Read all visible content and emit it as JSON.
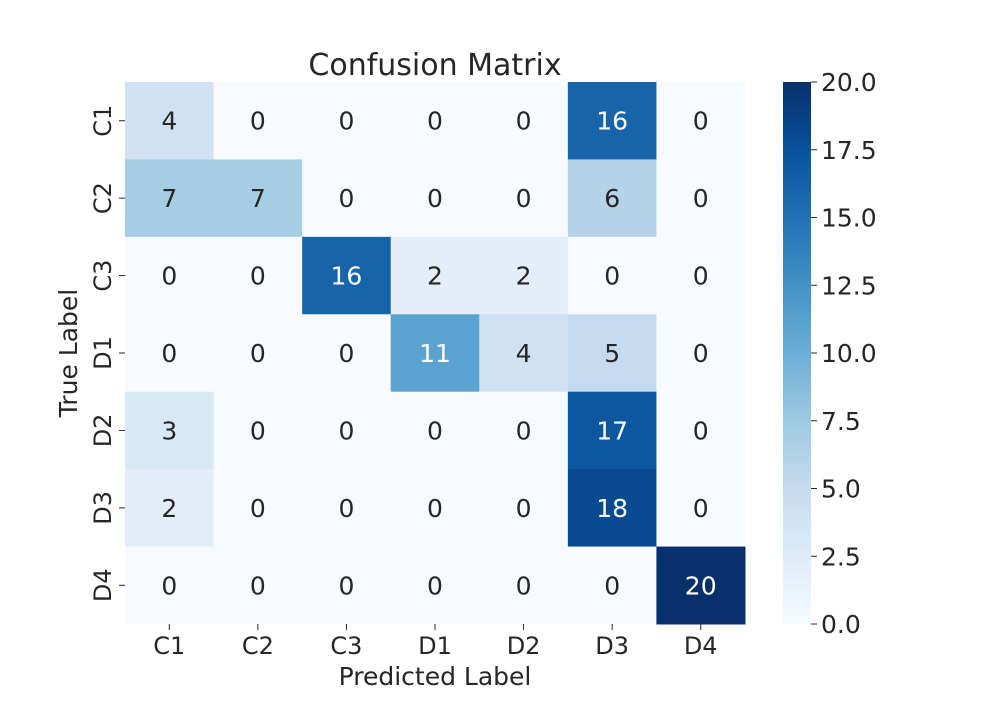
{
  "chart_data": {
    "type": "heatmap",
    "title": "Confusion Matrix",
    "xlabel": "Predicted Label",
    "ylabel": "True Label",
    "x_categories": [
      "C1",
      "C2",
      "C3",
      "D1",
      "D2",
      "D3",
      "D4"
    ],
    "y_categories": [
      "C1",
      "C2",
      "C3",
      "D1",
      "D2",
      "D3",
      "D4"
    ],
    "values": [
      [
        4,
        0,
        0,
        0,
        0,
        16,
        0
      ],
      [
        7,
        7,
        0,
        0,
        0,
        6,
        0
      ],
      [
        0,
        0,
        16,
        2,
        2,
        0,
        0
      ],
      [
        0,
        0,
        0,
        11,
        4,
        5,
        0
      ],
      [
        3,
        0,
        0,
        0,
        0,
        17,
        0
      ],
      [
        2,
        0,
        0,
        0,
        0,
        18,
        0
      ],
      [
        0,
        0,
        0,
        0,
        0,
        0,
        20
      ]
    ],
    "colormap": "Blues",
    "vmin": 0,
    "vmax": 20,
    "colorbar_ticks": [
      "0.0",
      "2.5",
      "5.0",
      "7.5",
      "10.0",
      "12.5",
      "15.0",
      "17.5",
      "20.0"
    ],
    "colors": {
      "low": "#f7fbff",
      "high": "#08306b",
      "text_dark": "#262626",
      "text_light": "#ffffff"
    }
  }
}
